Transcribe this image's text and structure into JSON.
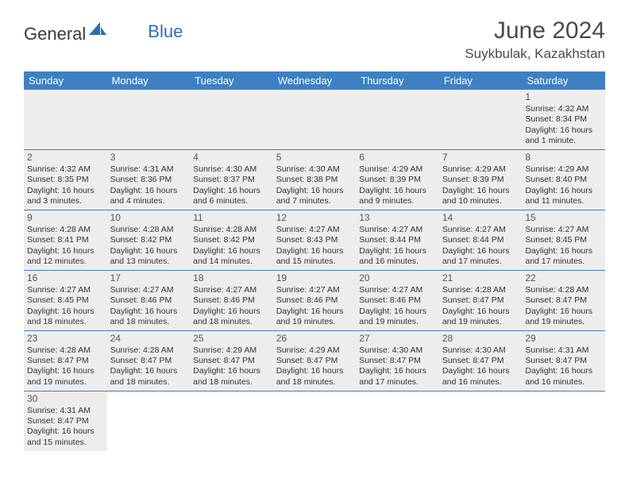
{
  "brand": {
    "general": "General",
    "blue": "Blue"
  },
  "title": "June 2024",
  "location": "Suykbulak, Kazakhstan",
  "colors": {
    "header_bg": "#3e80c1",
    "header_text": "#ffffff",
    "shade_bg": "#ededed",
    "cell_border": "#3e80c1",
    "text": "#333333",
    "title_text": "#4a4a4a",
    "logo_blue": "#2d6fb3"
  },
  "day_headers": [
    "Sunday",
    "Monday",
    "Tuesday",
    "Wednesday",
    "Thursday",
    "Friday",
    "Saturday"
  ],
  "weeks": [
    [
      null,
      null,
      null,
      null,
      null,
      null,
      {
        "n": "1",
        "sr": "Sunrise: 4:32 AM",
        "ss": "Sunset: 8:34 PM",
        "dl": "Daylight: 16 hours and 1 minute."
      }
    ],
    [
      {
        "n": "2",
        "sr": "Sunrise: 4:32 AM",
        "ss": "Sunset: 8:35 PM",
        "dl": "Daylight: 16 hours and 3 minutes."
      },
      {
        "n": "3",
        "sr": "Sunrise: 4:31 AM",
        "ss": "Sunset: 8:36 PM",
        "dl": "Daylight: 16 hours and 4 minutes."
      },
      {
        "n": "4",
        "sr": "Sunrise: 4:30 AM",
        "ss": "Sunset: 8:37 PM",
        "dl": "Daylight: 16 hours and 6 minutes."
      },
      {
        "n": "5",
        "sr": "Sunrise: 4:30 AM",
        "ss": "Sunset: 8:38 PM",
        "dl": "Daylight: 16 hours and 7 minutes."
      },
      {
        "n": "6",
        "sr": "Sunrise: 4:29 AM",
        "ss": "Sunset: 8:39 PM",
        "dl": "Daylight: 16 hours and 9 minutes."
      },
      {
        "n": "7",
        "sr": "Sunrise: 4:29 AM",
        "ss": "Sunset: 8:39 PM",
        "dl": "Daylight: 16 hours and 10 minutes."
      },
      {
        "n": "8",
        "sr": "Sunrise: 4:29 AM",
        "ss": "Sunset: 8:40 PM",
        "dl": "Daylight: 16 hours and 11 minutes."
      }
    ],
    [
      {
        "n": "9",
        "sr": "Sunrise: 4:28 AM",
        "ss": "Sunset: 8:41 PM",
        "dl": "Daylight: 16 hours and 12 minutes."
      },
      {
        "n": "10",
        "sr": "Sunrise: 4:28 AM",
        "ss": "Sunset: 8:42 PM",
        "dl": "Daylight: 16 hours and 13 minutes."
      },
      {
        "n": "11",
        "sr": "Sunrise: 4:28 AM",
        "ss": "Sunset: 8:42 PM",
        "dl": "Daylight: 16 hours and 14 minutes."
      },
      {
        "n": "12",
        "sr": "Sunrise: 4:27 AM",
        "ss": "Sunset: 8:43 PM",
        "dl": "Daylight: 16 hours and 15 minutes."
      },
      {
        "n": "13",
        "sr": "Sunrise: 4:27 AM",
        "ss": "Sunset: 8:44 PM",
        "dl": "Daylight: 16 hours and 16 minutes."
      },
      {
        "n": "14",
        "sr": "Sunrise: 4:27 AM",
        "ss": "Sunset: 8:44 PM",
        "dl": "Daylight: 16 hours and 17 minutes."
      },
      {
        "n": "15",
        "sr": "Sunrise: 4:27 AM",
        "ss": "Sunset: 8:45 PM",
        "dl": "Daylight: 16 hours and 17 minutes."
      }
    ],
    [
      {
        "n": "16",
        "sr": "Sunrise: 4:27 AM",
        "ss": "Sunset: 8:45 PM",
        "dl": "Daylight: 16 hours and 18 minutes."
      },
      {
        "n": "17",
        "sr": "Sunrise: 4:27 AM",
        "ss": "Sunset: 8:46 PM",
        "dl": "Daylight: 16 hours and 18 minutes."
      },
      {
        "n": "18",
        "sr": "Sunrise: 4:27 AM",
        "ss": "Sunset: 8:46 PM",
        "dl": "Daylight: 16 hours and 18 minutes."
      },
      {
        "n": "19",
        "sr": "Sunrise: 4:27 AM",
        "ss": "Sunset: 8:46 PM",
        "dl": "Daylight: 16 hours and 19 minutes."
      },
      {
        "n": "20",
        "sr": "Sunrise: 4:27 AM",
        "ss": "Sunset: 8:46 PM",
        "dl": "Daylight: 16 hours and 19 minutes."
      },
      {
        "n": "21",
        "sr": "Sunrise: 4:28 AM",
        "ss": "Sunset: 8:47 PM",
        "dl": "Daylight: 16 hours and 19 minutes."
      },
      {
        "n": "22",
        "sr": "Sunrise: 4:28 AM",
        "ss": "Sunset: 8:47 PM",
        "dl": "Daylight: 16 hours and 19 minutes."
      }
    ],
    [
      {
        "n": "23",
        "sr": "Sunrise: 4:28 AM",
        "ss": "Sunset: 8:47 PM",
        "dl": "Daylight: 16 hours and 19 minutes."
      },
      {
        "n": "24",
        "sr": "Sunrise: 4:28 AM",
        "ss": "Sunset: 8:47 PM",
        "dl": "Daylight: 16 hours and 18 minutes."
      },
      {
        "n": "25",
        "sr": "Sunrise: 4:29 AM",
        "ss": "Sunset: 8:47 PM",
        "dl": "Daylight: 16 hours and 18 minutes."
      },
      {
        "n": "26",
        "sr": "Sunrise: 4:29 AM",
        "ss": "Sunset: 8:47 PM",
        "dl": "Daylight: 16 hours and 18 minutes."
      },
      {
        "n": "27",
        "sr": "Sunrise: 4:30 AM",
        "ss": "Sunset: 8:47 PM",
        "dl": "Daylight: 16 hours and 17 minutes."
      },
      {
        "n": "28",
        "sr": "Sunrise: 4:30 AM",
        "ss": "Sunset: 8:47 PM",
        "dl": "Daylight: 16 hours and 16 minutes."
      },
      {
        "n": "29",
        "sr": "Sunrise: 4:31 AM",
        "ss": "Sunset: 8:47 PM",
        "dl": "Daylight: 16 hours and 16 minutes."
      }
    ],
    [
      {
        "n": "30",
        "sr": "Sunrise: 4:31 AM",
        "ss": "Sunset: 8:47 PM",
        "dl": "Daylight: 16 hours and 15 minutes."
      },
      null,
      null,
      null,
      null,
      null,
      null
    ]
  ]
}
